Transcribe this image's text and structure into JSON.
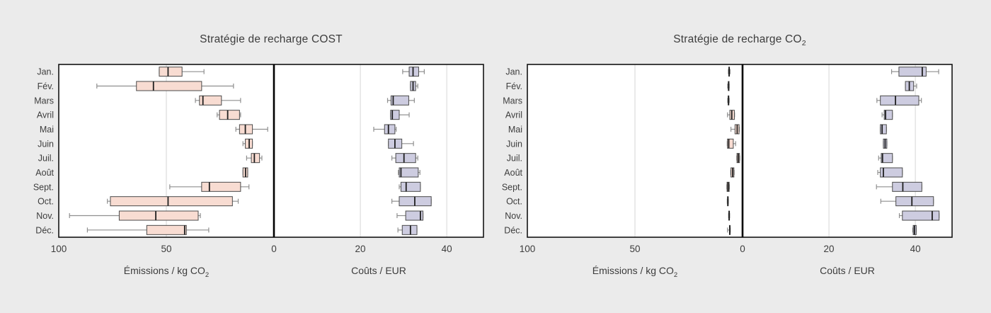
{
  "colors": {
    "background": "#ebebeb",
    "plot_background": "#ffffff",
    "emissions_box_fill": "#f8dcd2",
    "costs_box_fill": "#cdcce0",
    "box_border": "#4a4a4a",
    "median_line": "#1f1f1f",
    "whisker": "#8f8f8f",
    "gridline": "#d6d6d6",
    "spine": "#141414",
    "text": "#3d3d3d"
  },
  "chart_data": [
    {
      "type": "boxplot-horizontal",
      "title_text": "Stratégie de recharge COST",
      "title_sub": "",
      "categories": [
        "Jan.",
        "Fév.",
        "Mars",
        "Avril",
        "Mai",
        "Juin",
        "Juil.",
        "Août",
        "Sept.",
        "Oct.",
        "Nov.",
        "Déc."
      ],
      "axes": [
        {
          "xlabel_text": "Émissions / kg CO",
          "xlabel_sub": "2",
          "xlim": [
            100,
            0
          ],
          "ticks": [
            100,
            50,
            0
          ],
          "grid": [
            50
          ],
          "box_fill": "#f8dcd2",
          "boxes": [
            [
              32.5,
              42.7,
              49.2,
              53.3,
              53.3
            ],
            [
              18.8,
              33.6,
              56.0,
              63.9,
              82.3
            ],
            [
              15.5,
              24.4,
              33.0,
              34.6,
              36.5
            ],
            [
              15.5,
              16.0,
              21.5,
              25.3,
              26.4
            ],
            [
              2.9,
              10.0,
              13.3,
              16.0,
              17.7
            ],
            [
              10.0,
              10.0,
              11.5,
              13.3,
              14.4
            ],
            [
              5.6,
              6.7,
              9.1,
              10.5,
              12.7
            ],
            [
              12.2,
              12.2,
              13.2,
              14.4,
              14.4
            ],
            [
              11.6,
              15.5,
              30.0,
              33.6,
              48.4
            ],
            [
              16.6,
              19.3,
              49.2,
              76.0,
              77.4
            ],
            [
              34.2,
              35.2,
              54.9,
              71.9,
              95.0
            ],
            [
              30.3,
              40.7,
              41.5,
              59.1,
              86.7
            ]
          ]
        },
        {
          "xlabel_text": "Coûts / EUR",
          "xlabel_sub": "",
          "xlim": [
            0,
            48.5
          ],
          "ticks": [
            20,
            40
          ],
          "grid": [
            20,
            40
          ],
          "box_fill": "#cdcce0",
          "boxes": [
            [
              29.8,
              31.3,
              32.2,
              33.5,
              34.8
            ],
            [
              31.6,
              31.6,
              32.2,
              32.8,
              33.3
            ],
            [
              26.3,
              27.1,
              27.6,
              31.2,
              32.5
            ],
            [
              27.0,
              27.0,
              27.4,
              29.0,
              31.3
            ],
            [
              23.1,
              25.6,
              26.5,
              28.0,
              28.3
            ],
            [
              26.5,
              26.5,
              28.0,
              29.6,
              32.3
            ],
            [
              27.3,
              28.2,
              30.1,
              32.8,
              33.3
            ],
            [
              28.8,
              29.0,
              29.4,
              33.4,
              33.8
            ],
            [
              29.0,
              29.4,
              30.6,
              33.9,
              33.9
            ],
            [
              27.3,
              29.0,
              32.6,
              36.4,
              36.4
            ],
            [
              28.5,
              30.5,
              33.9,
              34.5,
              34.5
            ],
            [
              28.7,
              29.7,
              31.6,
              33.1,
              33.1
            ]
          ]
        }
      ]
    },
    {
      "type": "boxplot-horizontal",
      "title_text": "Stratégie de recharge CO",
      "title_sub": "2",
      "categories": [
        "Jan.",
        "Fév.",
        "Mars",
        "Avril",
        "Mai",
        "Juin",
        "Juil.",
        "Août",
        "Sept.",
        "Oct.",
        "Nov.",
        "Déc."
      ],
      "axes": [
        {
          "xlabel_text": "Émissions / kg CO",
          "xlabel_sub": "2",
          "xlim": [
            100,
            0
          ],
          "ticks": [
            100,
            50,
            0
          ],
          "grid": [
            50
          ],
          "box_fill": "#f8dcd2",
          "boxes": [
            [
              5.8,
              6.1,
              6.2,
              6.4,
              6.6
            ],
            [
              6.2,
              6.4,
              6.5,
              6.6,
              6.9
            ],
            [
              6.2,
              6.4,
              6.5,
              6.7,
              6.9
            ],
            [
              3.7,
              3.8,
              5.0,
              5.9,
              7.0
            ],
            [
              1.5,
              1.6,
              2.5,
              3.5,
              5.4
            ],
            [
              3.2,
              4.3,
              6.4,
              7.0,
              7.1
            ],
            [
              1.3,
              1.4,
              2.0,
              2.6,
              2.7
            ],
            [
              3.9,
              4.0,
              4.6,
              5.4,
              5.5
            ],
            [
              6.1,
              6.2,
              6.7,
              7.2,
              7.3
            ],
            [
              6.6,
              6.7,
              6.8,
              7.0,
              7.1
            ],
            [
              6.0,
              6.1,
              6.2,
              6.4,
              6.5
            ],
            [
              5.7,
              5.8,
              5.9,
              6.1,
              7.0
            ]
          ]
        },
        {
          "xlabel_text": "Coûts / EUR",
          "xlabel_sub": "",
          "xlim": [
            0,
            48.5
          ],
          "ticks": [
            20,
            40
          ],
          "grid": [
            20,
            40
          ],
          "box_fill": "#cdcce0",
          "boxes": [
            [
              34.5,
              36.2,
              41.6,
              42.5,
              45.4
            ],
            [
              37.7,
              37.7,
              38.6,
              39.6,
              40.3
            ],
            [
              31.1,
              31.9,
              35.4,
              40.8,
              41.4
            ],
            [
              32.3,
              32.8,
              33.1,
              34.7,
              34.7
            ],
            [
              31.9,
              31.9,
              32.3,
              33.3,
              33.3
            ],
            [
              32.6,
              32.6,
              33.0,
              33.4,
              33.4
            ],
            [
              31.5,
              32.1,
              32.4,
              34.7,
              34.7
            ],
            [
              31.3,
              31.9,
              32.6,
              37.0,
              37.0
            ],
            [
              31.0,
              34.7,
              37.1,
              41.5,
              41.5
            ],
            [
              32.0,
              35.5,
              39.2,
              44.2,
              44.2
            ],
            [
              36.3,
              37.0,
              43.9,
              45.5,
              45.5
            ],
            [
              39.4,
              39.5,
              39.8,
              40.2,
              40.2
            ]
          ]
        }
      ]
    }
  ]
}
